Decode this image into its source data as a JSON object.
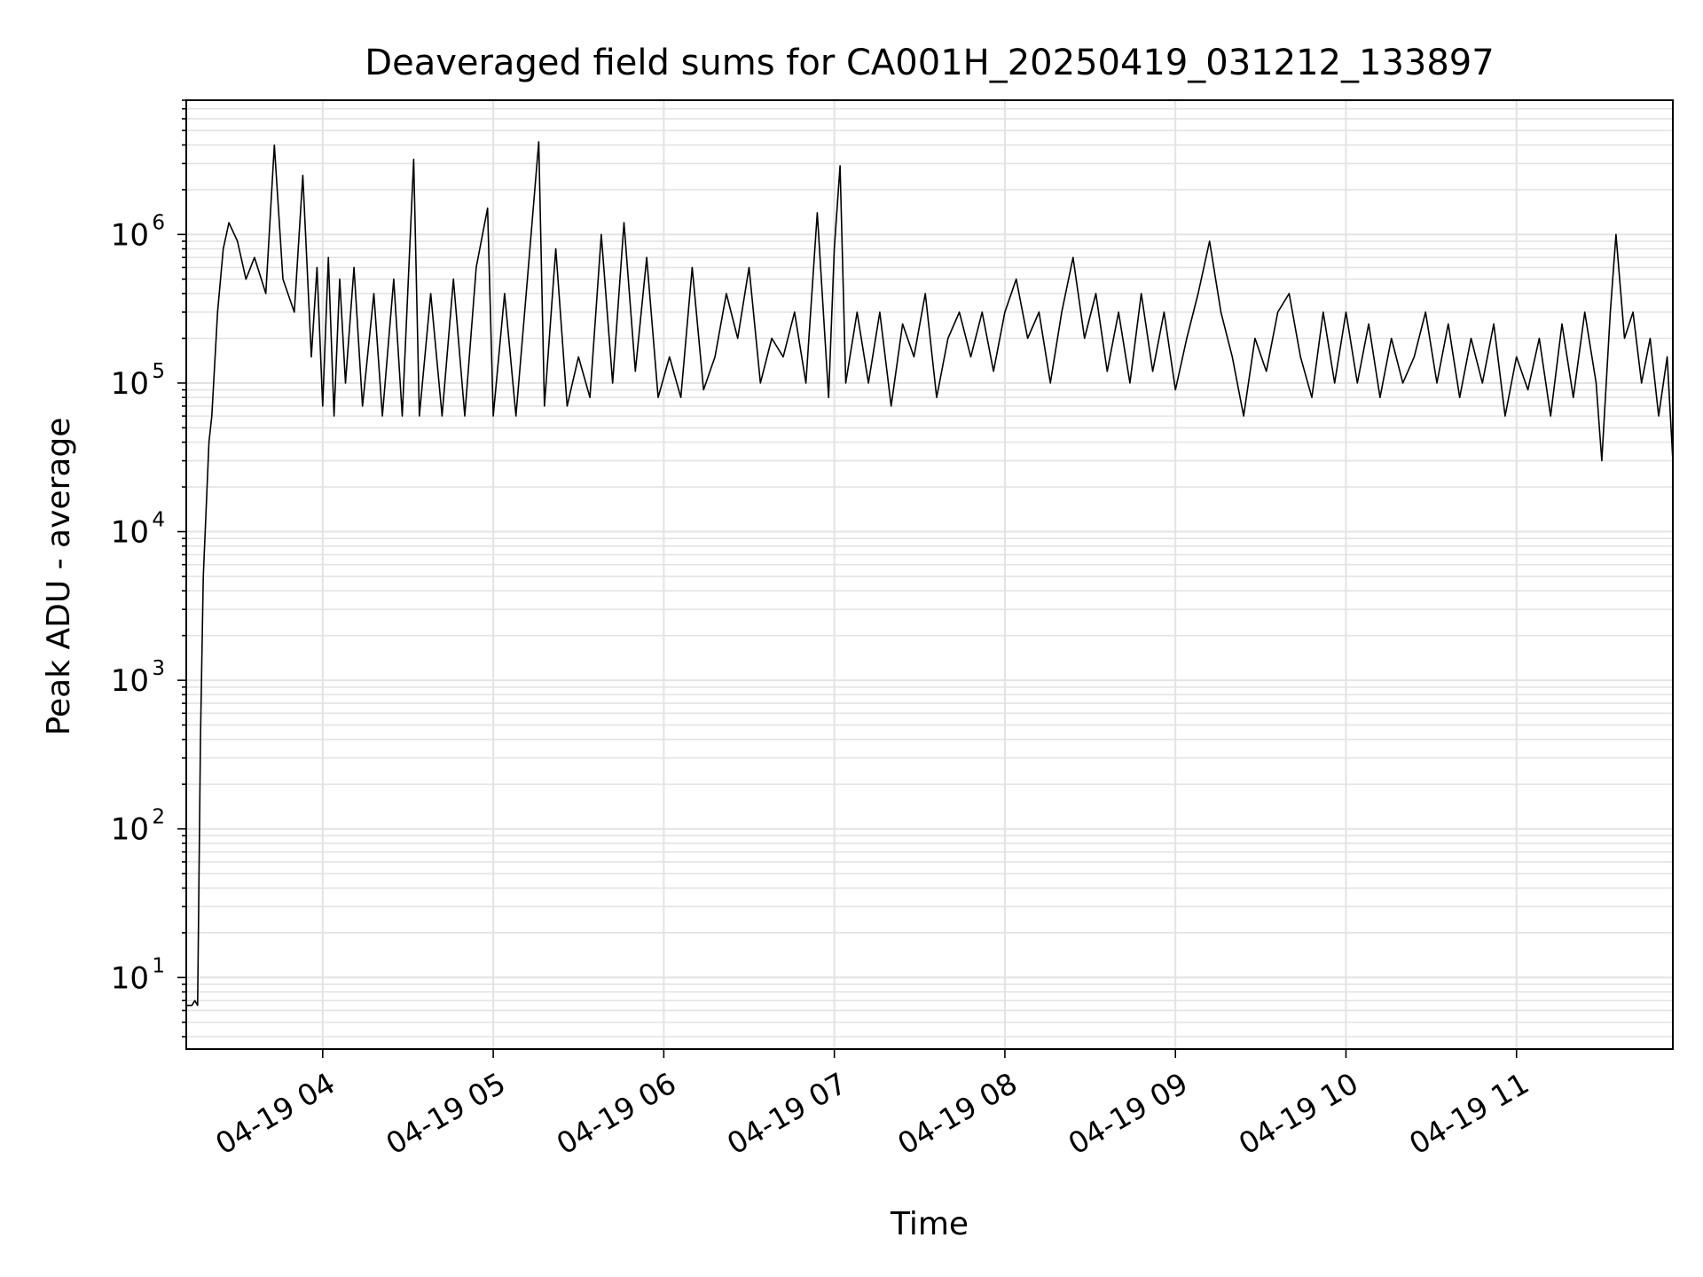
{
  "chart_data": {
    "type": "line",
    "title": "Deaveraged field sums for CA001H_20250419_031212_133897",
    "xlabel": "Time",
    "ylabel": "Peak ADU - average",
    "yscale": "log",
    "ylim": [
      3.3,
      8000000
    ],
    "xlim": [
      "04-19 03:12",
      "04-19 11:55"
    ],
    "grid": true,
    "x_ticks": [
      {
        "t": "04-19 04:00",
        "label": "04-19 04"
      },
      {
        "t": "04-19 05:00",
        "label": "04-19 05"
      },
      {
        "t": "04-19 06:00",
        "label": "04-19 06"
      },
      {
        "t": "04-19 07:00",
        "label": "04-19 07"
      },
      {
        "t": "04-19 08:00",
        "label": "04-19 08"
      },
      {
        "t": "04-19 09:00",
        "label": "04-19 09"
      },
      {
        "t": "04-19 10:00",
        "label": "04-19 10"
      },
      {
        "t": "04-19 11:00",
        "label": "04-19 11"
      }
    ],
    "y_ticks": [
      {
        "v": 10,
        "base": "10",
        "exp": "1"
      },
      {
        "v": 100,
        "base": "10",
        "exp": "2"
      },
      {
        "v": 1000,
        "base": "10",
        "exp": "3"
      },
      {
        "v": 10000,
        "base": "10",
        "exp": "4"
      },
      {
        "v": 100000,
        "base": "10",
        "exp": "5"
      },
      {
        "v": 1000000,
        "base": "10",
        "exp": "6"
      }
    ],
    "series": [
      {
        "color": "#000000",
        "points": [
          [
            "04-19 03:12",
            6.5
          ],
          [
            "04-19 03:14",
            6.5
          ],
          [
            "04-19 03:15",
            7
          ],
          [
            "04-19 03:16",
            6.5
          ],
          [
            "04-19 03:17",
            400
          ],
          [
            "04-19 03:18",
            5000
          ],
          [
            "04-19 03:20",
            40000
          ],
          [
            "04-19 03:21",
            60000
          ],
          [
            "04-19 03:23",
            300000
          ],
          [
            "04-19 03:25",
            800000
          ],
          [
            "04-19 03:27",
            1200000
          ],
          [
            "04-19 03:30",
            900000
          ],
          [
            "04-19 03:33",
            500000
          ],
          [
            "04-19 03:36",
            700000
          ],
          [
            "04-19 03:40",
            400000
          ],
          [
            "04-19 03:43",
            4000000
          ],
          [
            "04-19 03:46",
            500000
          ],
          [
            "04-19 03:50",
            300000
          ],
          [
            "04-19 03:53",
            2500000
          ],
          [
            "04-19 03:56",
            150000
          ],
          [
            "04-19 03:58",
            600000
          ],
          [
            "04-19 04:00",
            70000
          ],
          [
            "04-19 04:02",
            700000
          ],
          [
            "04-19 04:04",
            60000
          ],
          [
            "04-19 04:06",
            500000
          ],
          [
            "04-19 04:08",
            100000
          ],
          [
            "04-19 04:11",
            600000
          ],
          [
            "04-19 04:14",
            70000
          ],
          [
            "04-19 04:18",
            400000
          ],
          [
            "04-19 04:21",
            60000
          ],
          [
            "04-19 04:25",
            500000
          ],
          [
            "04-19 04:28",
            60000
          ],
          [
            "04-19 04:32",
            3200000
          ],
          [
            "04-19 04:34",
            60000
          ],
          [
            "04-19 04:38",
            400000
          ],
          [
            "04-19 04:42",
            60000
          ],
          [
            "04-19 04:46",
            500000
          ],
          [
            "04-19 04:50",
            60000
          ],
          [
            "04-19 04:54",
            600000
          ],
          [
            "04-19 04:58",
            1500000
          ],
          [
            "04-19 05:00",
            60000
          ],
          [
            "04-19 05:04",
            400000
          ],
          [
            "04-19 05:08",
            60000
          ],
          [
            "04-19 05:12",
            500000
          ],
          [
            "04-19 05:16",
            4200000
          ],
          [
            "04-19 05:18",
            70000
          ],
          [
            "04-19 05:22",
            800000
          ],
          [
            "04-19 05:26",
            70000
          ],
          [
            "04-19 05:30",
            150000
          ],
          [
            "04-19 05:34",
            80000
          ],
          [
            "04-19 05:38",
            1000000
          ],
          [
            "04-19 05:42",
            100000
          ],
          [
            "04-19 05:46",
            1200000
          ],
          [
            "04-19 05:50",
            120000
          ],
          [
            "04-19 05:54",
            700000
          ],
          [
            "04-19 05:58",
            80000
          ],
          [
            "04-19 06:02",
            150000
          ],
          [
            "04-19 06:06",
            80000
          ],
          [
            "04-19 06:10",
            600000
          ],
          [
            "04-19 06:14",
            90000
          ],
          [
            "04-19 06:18",
            150000
          ],
          [
            "04-19 06:22",
            400000
          ],
          [
            "04-19 06:26",
            200000
          ],
          [
            "04-19 06:30",
            600000
          ],
          [
            "04-19 06:34",
            100000
          ],
          [
            "04-19 06:38",
            200000
          ],
          [
            "04-19 06:42",
            150000
          ],
          [
            "04-19 06:46",
            300000
          ],
          [
            "04-19 06:50",
            100000
          ],
          [
            "04-19 06:54",
            1400000
          ],
          [
            "04-19 06:58",
            80000
          ],
          [
            "04-19 07:00",
            800000
          ],
          [
            "04-19 07:02",
            2900000
          ],
          [
            "04-19 07:04",
            100000
          ],
          [
            "04-19 07:08",
            300000
          ],
          [
            "04-19 07:12",
            100000
          ],
          [
            "04-19 07:16",
            300000
          ],
          [
            "04-19 07:20",
            70000
          ],
          [
            "04-19 07:24",
            250000
          ],
          [
            "04-19 07:28",
            150000
          ],
          [
            "04-19 07:32",
            400000
          ],
          [
            "04-19 07:36",
            80000
          ],
          [
            "04-19 07:40",
            200000
          ],
          [
            "04-19 07:44",
            300000
          ],
          [
            "04-19 07:48",
            150000
          ],
          [
            "04-19 07:52",
            300000
          ],
          [
            "04-19 07:56",
            120000
          ],
          [
            "04-19 08:00",
            300000
          ],
          [
            "04-19 08:04",
            500000
          ],
          [
            "04-19 08:08",
            200000
          ],
          [
            "04-19 08:12",
            300000
          ],
          [
            "04-19 08:16",
            100000
          ],
          [
            "04-19 08:20",
            300000
          ],
          [
            "04-19 08:24",
            700000
          ],
          [
            "04-19 08:28",
            200000
          ],
          [
            "04-19 08:32",
            400000
          ],
          [
            "04-19 08:36",
            120000
          ],
          [
            "04-19 08:40",
            300000
          ],
          [
            "04-19 08:44",
            100000
          ],
          [
            "04-19 08:48",
            400000
          ],
          [
            "04-19 08:52",
            120000
          ],
          [
            "04-19 08:56",
            300000
          ],
          [
            "04-19 09:00",
            90000
          ],
          [
            "04-19 09:04",
            200000
          ],
          [
            "04-19 09:08",
            400000
          ],
          [
            "04-19 09:12",
            900000
          ],
          [
            "04-19 09:16",
            300000
          ],
          [
            "04-19 09:20",
            150000
          ],
          [
            "04-19 09:24",
            60000
          ],
          [
            "04-19 09:28",
            200000
          ],
          [
            "04-19 09:32",
            120000
          ],
          [
            "04-19 09:36",
            300000
          ],
          [
            "04-19 09:40",
            400000
          ],
          [
            "04-19 09:44",
            150000
          ],
          [
            "04-19 09:48",
            80000
          ],
          [
            "04-19 09:52",
            300000
          ],
          [
            "04-19 09:56",
            100000
          ],
          [
            "04-19 10:00",
            300000
          ],
          [
            "04-19 10:04",
            100000
          ],
          [
            "04-19 10:08",
            250000
          ],
          [
            "04-19 10:12",
            80000
          ],
          [
            "04-19 10:16",
            200000
          ],
          [
            "04-19 10:20",
            100000
          ],
          [
            "04-19 10:24",
            150000
          ],
          [
            "04-19 10:28",
            300000
          ],
          [
            "04-19 10:32",
            100000
          ],
          [
            "04-19 10:36",
            250000
          ],
          [
            "04-19 10:40",
            80000
          ],
          [
            "04-19 10:44",
            200000
          ],
          [
            "04-19 10:48",
            100000
          ],
          [
            "04-19 10:52",
            250000
          ],
          [
            "04-19 10:56",
            60000
          ],
          [
            "04-19 11:00",
            150000
          ],
          [
            "04-19 11:04",
            90000
          ],
          [
            "04-19 11:08",
            200000
          ],
          [
            "04-19 11:12",
            60000
          ],
          [
            "04-19 11:16",
            250000
          ],
          [
            "04-19 11:20",
            80000
          ],
          [
            "04-19 11:24",
            300000
          ],
          [
            "04-19 11:28",
            100000
          ],
          [
            "04-19 11:30",
            30000
          ],
          [
            "04-19 11:33",
            300000
          ],
          [
            "04-19 11:35",
            1000000
          ],
          [
            "04-19 11:38",
            200000
          ],
          [
            "04-19 11:41",
            300000
          ],
          [
            "04-19 11:44",
            100000
          ],
          [
            "04-19 11:47",
            200000
          ],
          [
            "04-19 11:50",
            60000
          ],
          [
            "04-19 11:53",
            150000
          ],
          [
            "04-19 11:55",
            30000
          ]
        ]
      }
    ]
  }
}
